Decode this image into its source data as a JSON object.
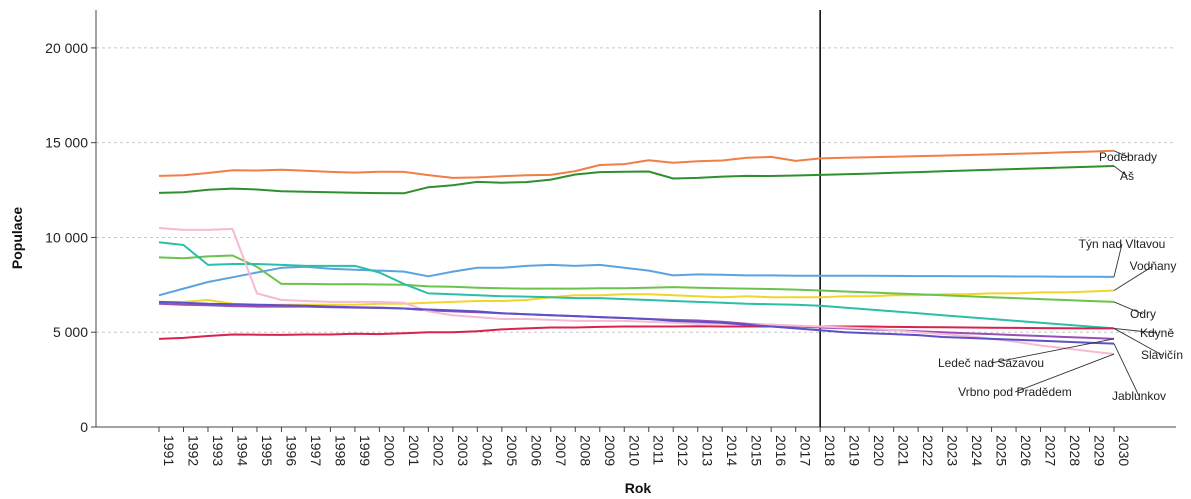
{
  "chart_data": {
    "type": "line",
    "xlabel": "Rok",
    "ylabel": "Populace",
    "ylim": [
      0,
      22000
    ],
    "yticks": [
      0,
      5000,
      10000,
      15000,
      20000
    ],
    "ytick_labels": [
      "0",
      "5 000",
      "10 000",
      "15 000",
      "20 000"
    ],
    "grid": "horizontal dashed",
    "reference_line_x": 2018,
    "x": [
      1991,
      1992,
      1993,
      1994,
      1995,
      1996,
      1997,
      1998,
      1999,
      2000,
      2001,
      2002,
      2003,
      2004,
      2005,
      2006,
      2007,
      2008,
      2009,
      2010,
      2011,
      2012,
      2013,
      2014,
      2015,
      2016,
      2017,
      2018,
      2019,
      2020,
      2021,
      2022,
      2023,
      2024,
      2025,
      2026,
      2027,
      2028,
      2029,
      2030
    ],
    "x_labels": [
      "1991",
      "1992",
      "1993",
      "1994",
      "1995",
      "1996",
      "1997",
      "1998",
      "1999",
      "2000",
      "2001",
      "2002",
      "2003",
      "2004",
      "2005",
      "2006",
      "2007",
      "2008",
      "2009",
      "2010",
      "2011",
      "2012",
      "2013",
      "2014",
      "2015",
      "2016",
      "2017",
      "2018",
      "2019",
      "2020",
      "2021",
      "2022",
      "2023",
      "2024",
      "2025",
      "2026",
      "2027",
      "2028",
      "2029",
      "2030"
    ],
    "series": [
      {
        "name": "Poděbrady",
        "color": "#f07f45",
        "values": [
          13250,
          13280,
          13400,
          13550,
          13530,
          13570,
          13520,
          13460,
          13420,
          13470,
          13460,
          13290,
          13140,
          13170,
          13230,
          13280,
          13300,
          13500,
          13820,
          13870,
          14070,
          13940,
          14020,
          14060,
          14200,
          14250,
          14040,
          14170,
          14200,
          14230,
          14260,
          14290,
          14320,
          14350,
          14380,
          14420,
          14450,
          14490,
          14530,
          14570
        ]
      },
      {
        "name": "Aš",
        "color": "#2f8f2f",
        "values": [
          12350,
          12380,
          12520,
          12580,
          12530,
          12440,
          12410,
          12380,
          12360,
          12340,
          12330,
          12650,
          12750,
          12930,
          12890,
          12920,
          13050,
          13320,
          13450,
          13470,
          13480,
          13110,
          13140,
          13210,
          13250,
          13240,
          13270,
          13300,
          13330,
          13370,
          13410,
          13450,
          13490,
          13530,
          13570,
          13610,
          13650,
          13690,
          13730,
          13770
        ]
      },
      {
        "name": "Týn nad Vltavou",
        "color": "#5ba3e0",
        "values": [
          6950,
          7300,
          7650,
          7900,
          8150,
          8400,
          8450,
          8350,
          8300,
          8250,
          8200,
          7950,
          8200,
          8400,
          8400,
          8500,
          8550,
          8500,
          8550,
          8400,
          8250,
          8000,
          8050,
          8030,
          8000,
          8000,
          7980,
          7980,
          7980,
          7980,
          7970,
          7960,
          7960,
          7950,
          7950,
          7940,
          7940,
          7930,
          7930,
          7920
        ]
      },
      {
        "name": "Vodňany",
        "color": "#f2d52b",
        "values": [
          6600,
          6600,
          6700,
          6500,
          6450,
          6450,
          6450,
          6450,
          6450,
          6500,
          6500,
          6550,
          6600,
          6650,
          6650,
          6700,
          6850,
          6950,
          6950,
          7000,
          7000,
          6950,
          6900,
          6850,
          6900,
          6850,
          6850,
          6850,
          6900,
          6900,
          6950,
          6950,
          7000,
          7000,
          7050,
          7050,
          7100,
          7100,
          7150,
          7200
        ]
      },
      {
        "name": "Odry",
        "color": "#6cc34b",
        "values": [
          8950,
          8900,
          9000,
          9050,
          8450,
          7550,
          7550,
          7530,
          7540,
          7520,
          7500,
          7420,
          7400,
          7350,
          7320,
          7300,
          7300,
          7300,
          7320,
          7320,
          7350,
          7380,
          7350,
          7320,
          7300,
          7280,
          7250,
          7200,
          7150,
          7100,
          7050,
          7000,
          6950,
          6900,
          6850,
          6800,
          6750,
          6700,
          6650,
          6600
        ]
      },
      {
        "name": "Kdyně",
        "color": "#2bbfa8",
        "values": [
          9750,
          9600,
          8550,
          8600,
          8600,
          8550,
          8500,
          8500,
          8500,
          8150,
          7550,
          7050,
          7000,
          6950,
          6900,
          6880,
          6850,
          6800,
          6800,
          6750,
          6700,
          6650,
          6600,
          6550,
          6500,
          6480,
          6450,
          6400,
          6300,
          6200,
          6100,
          6000,
          5900,
          5800,
          5700,
          5600,
          5500,
          5400,
          5300,
          5200
        ]
      },
      {
        "name": "Slavičín",
        "color": "#d8234f",
        "values": [
          4650,
          4700,
          4800,
          4880,
          4870,
          4860,
          4880,
          4880,
          4920,
          4900,
          4950,
          5000,
          5000,
          5050,
          5150,
          5200,
          5250,
          5250,
          5280,
          5300,
          5300,
          5300,
          5320,
          5300,
          5300,
          5300,
          5300,
          5300,
          5300,
          5300,
          5280,
          5270,
          5260,
          5250,
          5240,
          5230,
          5220,
          5210,
          5200,
          5200
        ]
      },
      {
        "name": "Ledeč nad Sázavou",
        "color": "#9a4fb5",
        "values": [
          6500,
          6450,
          6420,
          6380,
          6350,
          6350,
          6350,
          6320,
          6300,
          6280,
          6250,
          6150,
          6100,
          6050,
          6000,
          5950,
          5900,
          5850,
          5800,
          5750,
          5700,
          5650,
          5620,
          5550,
          5450,
          5380,
          5300,
          5250,
          5200,
          5150,
          5100,
          5050,
          5000,
          4950,
          4900,
          4850,
          4800,
          4750,
          4700,
          4650
        ]
      },
      {
        "name": "Vrbno pod Pradědem",
        "color": "#f7b9d3",
        "values": [
          10500,
          10400,
          10400,
          10450,
          7050,
          6700,
          6650,
          6600,
          6600,
          6600,
          6550,
          6100,
          5900,
          5800,
          5700,
          5700,
          5650,
          5600,
          5600,
          5600,
          5550,
          5500,
          5450,
          5450,
          5400,
          5400,
          5350,
          5300,
          5250,
          5200,
          5100,
          5000,
          4900,
          4800,
          4650,
          4500,
          4300,
          4150,
          4000,
          3850
        ]
      },
      {
        "name": "Jablunkov",
        "color": "#5b51c9",
        "values": [
          6600,
          6550,
          6500,
          6480,
          6450,
          6420,
          6400,
          6350,
          6320,
          6300,
          6250,
          6200,
          6150,
          6100,
          6000,
          5950,
          5900,
          5850,
          5800,
          5750,
          5700,
          5600,
          5550,
          5500,
          5400,
          5300,
          5200,
          5100,
          5000,
          4950,
          4900,
          4850,
          4750,
          4700,
          4650,
          4600,
          4550,
          4500,
          4450,
          4400
        ]
      }
    ]
  }
}
